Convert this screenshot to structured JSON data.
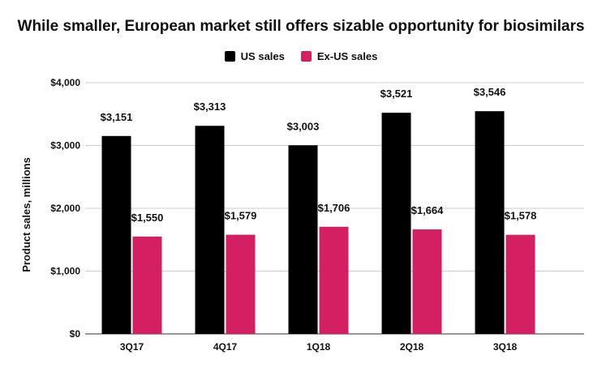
{
  "chart_data": {
    "type": "bar",
    "title": "While smaller, European market still offers sizable opportunity for biosimilars",
    "xlabel": "",
    "ylabel": "Product sales, millions",
    "categories": [
      "3Q17",
      "4Q17",
      "1Q18",
      "2Q18",
      "3Q18"
    ],
    "series": [
      {
        "name": "US sales",
        "color": "#000000",
        "values": [
          3151,
          3313,
          3003,
          3521,
          3546
        ],
        "labels": [
          "$3,151",
          "$3,313",
          "$3,003",
          "$3,521",
          "$3,546"
        ]
      },
      {
        "name": "Ex-US sales",
        "color": "#d41f63",
        "values": [
          1550,
          1579,
          1706,
          1664,
          1578
        ],
        "labels": [
          "$1,550",
          "$1,579",
          "$1,706",
          "$1,664",
          "$1,578"
        ]
      }
    ],
    "ylim": [
      0,
      4000
    ],
    "yticks": [
      0,
      1000,
      2000,
      3000,
      4000
    ],
    "ytick_labels": [
      "$0",
      "$1,000",
      "$2,000",
      "$3,000",
      "$4,000"
    ],
    "grid": true,
    "legend_position": "top-center"
  }
}
